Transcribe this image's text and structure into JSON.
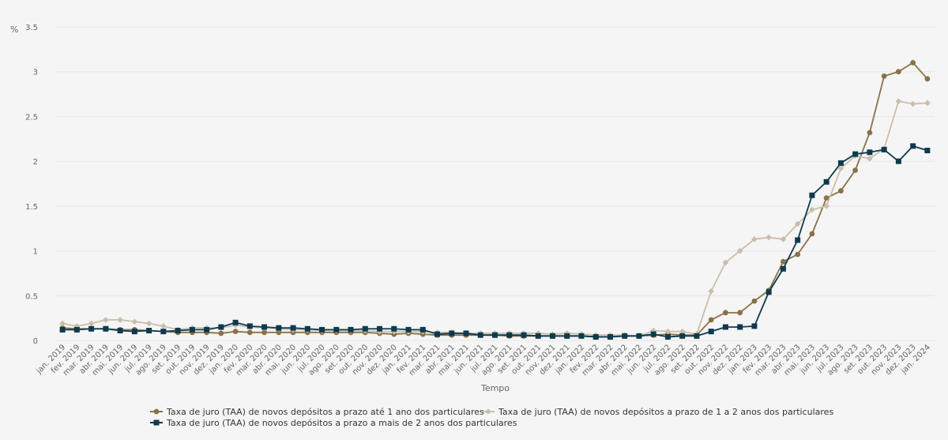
{
  "chart_data": {
    "type": "line",
    "title": "",
    "ylabel": "%",
    "xlabel": "Tempo",
    "ylim": [
      0,
      3.5
    ],
    "yticks": [
      "0",
      "0.5",
      "1",
      "1.5",
      "2",
      "2.5",
      "3",
      "3.5"
    ],
    "grid": true,
    "legend_position": "bottom",
    "categories": [
      "jan. 2019",
      "fev. 2019",
      "mar. 2019",
      "abr. 2019",
      "mai. 2019",
      "jun. 2019",
      "jul. 2019",
      "ago. 2019",
      "set. 2019",
      "out. 2019",
      "nov. 2019",
      "dez. 2019",
      "jan. 2020",
      "fev. 2020",
      "mar. 2020",
      "abr. 2020",
      "mai. 2020",
      "jun. 2020",
      "jul. 2020",
      "ago. 2020",
      "set. 2020",
      "out. 2020",
      "nov. 2020",
      "dez. 2020",
      "jan. 2021",
      "fev. 2021",
      "mar. 2021",
      "abr. 2021",
      "mai. 2021",
      "jun. 2021",
      "jul. 2021",
      "ago. 2021",
      "set. 2021",
      "out. 2021",
      "nov. 2021",
      "dez. 2021",
      "jan. 2022",
      "fev. 2022",
      "mar. 2022",
      "abr. 2022",
      "mai. 2022",
      "jun. 2022",
      "jul. 2022",
      "ago. 2022",
      "set. 2022",
      "out. 2022",
      "nov. 2022",
      "dez. 2022",
      "jan. 2023",
      "fev. 2023",
      "mar. 2023",
      "abr. 2023",
      "mai. 2023",
      "jun. 2023",
      "jul. 2023",
      "ago. 2023",
      "set. 2023",
      "out. 2023",
      "nov. 2023",
      "dez. 2023",
      "jan. 2024"
    ],
    "series": [
      {
        "name": "Taxa de juro (TAA) de novos depósitos a prazo até 1 ano dos particulares",
        "color": "#8b7145",
        "marker": "circle",
        "values": [
          0.14,
          0.13,
          0.13,
          0.13,
          0.12,
          0.12,
          0.11,
          0.1,
          0.09,
          0.09,
          0.09,
          0.08,
          0.1,
          0.09,
          0.09,
          0.09,
          0.09,
          0.09,
          0.09,
          0.09,
          0.09,
          0.09,
          0.08,
          0.07,
          0.08,
          0.07,
          0.06,
          0.06,
          0.06,
          0.06,
          0.06,
          0.05,
          0.05,
          0.05,
          0.05,
          0.05,
          0.05,
          0.04,
          0.04,
          0.05,
          0.05,
          0.06,
          0.07,
          0.06,
          0.06,
          0.23,
          0.31,
          0.31,
          0.44,
          0.56,
          0.88,
          0.96,
          1.19,
          1.59,
          1.67,
          1.9,
          2.32,
          2.95,
          3.0,
          3.1,
          2.92
        ]
      },
      {
        "name": "Taxa de juro (TAA) de novos depósitos a prazo de 1 a 2 anos dos particulares",
        "color": "#c9bfa8",
        "marker": "diamond",
        "values": [
          0.19,
          0.16,
          0.19,
          0.23,
          0.23,
          0.21,
          0.19,
          0.16,
          0.12,
          0.14,
          0.14,
          0.14,
          0.17,
          0.15,
          0.14,
          0.13,
          0.12,
          0.12,
          0.11,
          0.11,
          0.11,
          0.11,
          0.1,
          0.1,
          0.1,
          0.1,
          0.09,
          0.09,
          0.08,
          0.08,
          0.08,
          0.08,
          0.08,
          0.08,
          0.07,
          0.08,
          0.07,
          0.06,
          0.06,
          0.06,
          0.05,
          0.11,
          0.1,
          0.1,
          0.07,
          0.55,
          0.87,
          1.0,
          1.13,
          1.15,
          1.13,
          1.3,
          1.46,
          1.5,
          1.92,
          2.06,
          2.03,
          2.14,
          2.67,
          2.64,
          2.65
        ]
      },
      {
        "name": "Taxa de juro (TAA) de novos depósitos a prazo a mais de 2 anos dos particulares",
        "color": "#0d3a4f",
        "marker": "square",
        "values": [
          0.12,
          0.12,
          0.13,
          0.13,
          0.11,
          0.1,
          0.11,
          0.1,
          0.11,
          0.12,
          0.12,
          0.15,
          0.2,
          0.16,
          0.15,
          0.14,
          0.14,
          0.13,
          0.12,
          0.12,
          0.12,
          0.13,
          0.13,
          0.13,
          0.12,
          0.12,
          0.07,
          0.08,
          0.08,
          0.06,
          0.06,
          0.06,
          0.06,
          0.05,
          0.05,
          0.05,
          0.05,
          0.04,
          0.04,
          0.05,
          0.05,
          0.07,
          0.04,
          0.05,
          0.05,
          0.1,
          0.15,
          0.15,
          0.16,
          0.54,
          0.8,
          1.12,
          1.62,
          1.77,
          1.98,
          2.08,
          2.1,
          2.13,
          2.0,
          2.17,
          2.12
        ]
      }
    ]
  }
}
